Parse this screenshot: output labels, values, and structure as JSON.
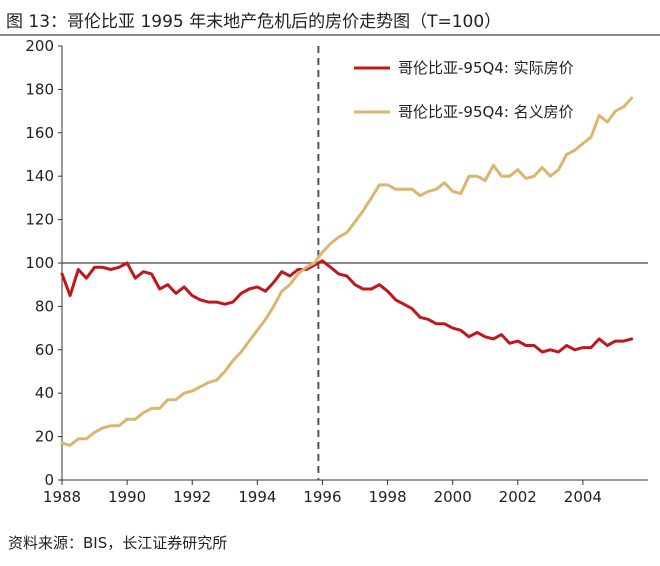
{
  "figure": {
    "title": "图 13：哥伦比亚 1995 年末地产危机后的房价走势图（T=100）",
    "source": "资料来源：BIS，长江证券研究所"
  },
  "chart_data": {
    "type": "line",
    "title": "图 13：哥伦比亚 1995 年末地产危机后的房价走势图（T=100）",
    "xlabel": "",
    "ylabel": "",
    "xlim": [
      1988,
      2006
    ],
    "ylim": [
      0,
      200
    ],
    "x_ticks": [
      "1988",
      "1990",
      "1992",
      "1994",
      "1996",
      "1998",
      "2000",
      "2002",
      "2004"
    ],
    "y_ticks": [
      "0",
      "20",
      "40",
      "60",
      "80",
      "100",
      "120",
      "140",
      "160",
      "180",
      "200"
    ],
    "grid": false,
    "reference_lines": [
      {
        "axis": "y",
        "value": 100,
        "style": "solid"
      },
      {
        "axis": "x",
        "value": 1995.875,
        "style": "dashed"
      }
    ],
    "legend": "top-right",
    "series": [
      {
        "name": "哥伦比亚-95Q4: 实际房价",
        "color": "#c0171c",
        "points": [
          [
            1988.0,
            95
          ],
          [
            1988.25,
            85
          ],
          [
            1988.5,
            97
          ],
          [
            1988.75,
            93
          ],
          [
            1989.0,
            98
          ],
          [
            1989.25,
            98
          ],
          [
            1989.5,
            97
          ],
          [
            1989.75,
            98
          ],
          [
            1990.0,
            100
          ],
          [
            1990.25,
            93
          ],
          [
            1990.5,
            96
          ],
          [
            1990.75,
            95
          ],
          [
            1991.0,
            88
          ],
          [
            1991.25,
            90
          ],
          [
            1991.5,
            86
          ],
          [
            1991.75,
            89
          ],
          [
            1992.0,
            85
          ],
          [
            1992.25,
            83
          ],
          [
            1992.5,
            82
          ],
          [
            1992.75,
            82
          ],
          [
            1993.0,
            81
          ],
          [
            1993.25,
            82
          ],
          [
            1993.5,
            86
          ],
          [
            1993.75,
            88
          ],
          [
            1994.0,
            89
          ],
          [
            1994.25,
            87
          ],
          [
            1994.5,
            91
          ],
          [
            1994.75,
            96
          ],
          [
            1995.0,
            94
          ],
          [
            1995.25,
            97
          ],
          [
            1995.5,
            97
          ],
          [
            1995.75,
            99
          ],
          [
            1996.0,
            101
          ],
          [
            1996.25,
            98
          ],
          [
            1996.5,
            95
          ],
          [
            1996.75,
            94
          ],
          [
            1997.0,
            90
          ],
          [
            1997.25,
            88
          ],
          [
            1997.5,
            88
          ],
          [
            1997.75,
            90
          ],
          [
            1998.0,
            87
          ],
          [
            1998.25,
            83
          ],
          [
            1998.5,
            81
          ],
          [
            1998.75,
            79
          ],
          [
            1999.0,
            75
          ],
          [
            1999.25,
            74
          ],
          [
            1999.5,
            72
          ],
          [
            1999.75,
            72
          ],
          [
            2000.0,
            70
          ],
          [
            2000.25,
            69
          ],
          [
            2000.5,
            66
          ],
          [
            2000.75,
            68
          ],
          [
            2001.0,
            66
          ],
          [
            2001.25,
            65
          ],
          [
            2001.5,
            67
          ],
          [
            2001.75,
            63
          ],
          [
            2002.0,
            64
          ],
          [
            2002.25,
            62
          ],
          [
            2002.5,
            62
          ],
          [
            2002.75,
            59
          ],
          [
            2003.0,
            60
          ],
          [
            2003.25,
            59
          ],
          [
            2003.5,
            62
          ],
          [
            2003.75,
            60
          ],
          [
            2004.0,
            61
          ],
          [
            2004.25,
            61
          ],
          [
            2004.5,
            65
          ],
          [
            2004.75,
            62
          ],
          [
            2005.0,
            64
          ],
          [
            2005.25,
            64
          ],
          [
            2005.5,
            65
          ]
        ]
      },
      {
        "name": "哥伦比亚-95Q4: 名义房价",
        "color": "#dcb56f",
        "points": [
          [
            1988.0,
            17
          ],
          [
            1988.25,
            16
          ],
          [
            1988.5,
            19
          ],
          [
            1988.75,
            19
          ],
          [
            1989.0,
            22
          ],
          [
            1989.25,
            24
          ],
          [
            1989.5,
            25
          ],
          [
            1989.75,
            25
          ],
          [
            1990.0,
            28
          ],
          [
            1990.25,
            28
          ],
          [
            1990.5,
            31
          ],
          [
            1990.75,
            33
          ],
          [
            1991.0,
            33
          ],
          [
            1991.25,
            37
          ],
          [
            1991.5,
            37
          ],
          [
            1991.75,
            40
          ],
          [
            1992.0,
            41
          ],
          [
            1992.25,
            43
          ],
          [
            1992.5,
            45
          ],
          [
            1992.75,
            46
          ],
          [
            1993.0,
            50
          ],
          [
            1993.25,
            55
          ],
          [
            1993.5,
            59
          ],
          [
            1993.75,
            64
          ],
          [
            1994.0,
            69
          ],
          [
            1994.25,
            74
          ],
          [
            1994.5,
            80
          ],
          [
            1994.75,
            87
          ],
          [
            1995.0,
            90
          ],
          [
            1995.25,
            95
          ],
          [
            1995.5,
            98
          ],
          [
            1995.75,
            100
          ],
          [
            1996.0,
            105
          ],
          [
            1996.25,
            109
          ],
          [
            1996.5,
            112
          ],
          [
            1996.75,
            114
          ],
          [
            1997.0,
            119
          ],
          [
            1997.25,
            124
          ],
          [
            1997.5,
            130
          ],
          [
            1997.75,
            136
          ],
          [
            1998.0,
            136
          ],
          [
            1998.25,
            134
          ],
          [
            1998.5,
            134
          ],
          [
            1998.75,
            134
          ],
          [
            1999.0,
            131
          ],
          [
            1999.25,
            133
          ],
          [
            1999.5,
            134
          ],
          [
            1999.75,
            137
          ],
          [
            2000.0,
            133
          ],
          [
            2000.25,
            132
          ],
          [
            2000.5,
            140
          ],
          [
            2000.75,
            140
          ],
          [
            2001.0,
            138
          ],
          [
            2001.25,
            145
          ],
          [
            2001.5,
            140
          ],
          [
            2001.75,
            140
          ],
          [
            2002.0,
            143
          ],
          [
            2002.25,
            139
          ],
          [
            2002.5,
            140
          ],
          [
            2002.75,
            144
          ],
          [
            2003.0,
            140
          ],
          [
            2003.25,
            143
          ],
          [
            2003.5,
            150
          ],
          [
            2003.75,
            152
          ],
          [
            2004.0,
            155
          ],
          [
            2004.25,
            158
          ],
          [
            2004.5,
            168
          ],
          [
            2004.75,
            165
          ],
          [
            2005.0,
            170
          ],
          [
            2005.25,
            172
          ],
          [
            2005.5,
            176
          ]
        ]
      }
    ]
  }
}
